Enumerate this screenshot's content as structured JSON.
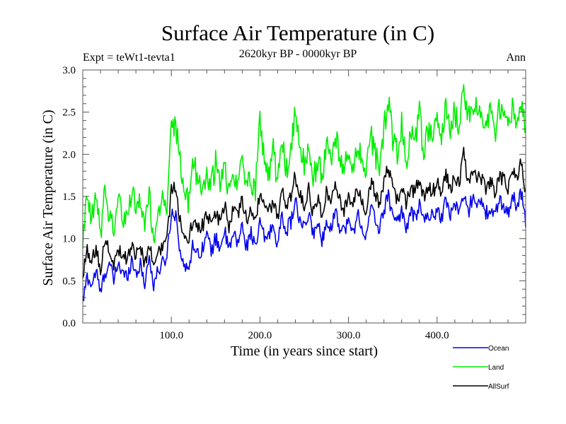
{
  "chart_data": {
    "type": "line",
    "title": "Surface Air Temperature (in C)",
    "subtitle": "2620kyr BP - 0000kyr BP",
    "experiment_label": "Expt = teWt1-tevta1",
    "season_label": "Ann",
    "xlabel": "Time (in years since start)",
    "ylabel": "Surface Air Temperature (in C)",
    "xlim": [
      0,
      500
    ],
    "ylim": [
      0.0,
      3.0
    ],
    "x_ticks": [
      100,
      200,
      300,
      400
    ],
    "x_tick_labels": [
      "100.0",
      "200.0",
      "300.0",
      "400.0"
    ],
    "x_minor_step": 20,
    "y_ticks": [
      0.0,
      0.5,
      1.0,
      1.5,
      2.0,
      2.5,
      3.0
    ],
    "y_tick_labels": [
      "0.0",
      "0.5",
      "1.0",
      "1.5",
      "2.0",
      "2.5",
      "3.0"
    ],
    "y_minor_step": 0.1,
    "grid": false,
    "legend_position": "bottom-right, below plot",
    "x": [
      0,
      5,
      10,
      15,
      20,
      25,
      30,
      35,
      40,
      45,
      50,
      55,
      60,
      65,
      70,
      75,
      80,
      85,
      90,
      95,
      100,
      105,
      110,
      115,
      120,
      125,
      130,
      135,
      140,
      145,
      150,
      155,
      160,
      165,
      170,
      175,
      180,
      185,
      190,
      195,
      200,
      205,
      210,
      215,
      220,
      225,
      230,
      235,
      240,
      245,
      250,
      255,
      260,
      265,
      270,
      275,
      280,
      285,
      290,
      295,
      300,
      305,
      310,
      315,
      320,
      325,
      330,
      335,
      340,
      345,
      350,
      355,
      360,
      365,
      370,
      375,
      380,
      385,
      390,
      395,
      400,
      405,
      410,
      415,
      420,
      425,
      430,
      435,
      440,
      445,
      450,
      455,
      460,
      465,
      470,
      475,
      480,
      485,
      490,
      495,
      500
    ],
    "series": [
      {
        "name": "Ocean",
        "color": "#0000ee",
        "values": [
          0.25,
          0.55,
          0.45,
          0.62,
          0.35,
          0.6,
          0.7,
          0.5,
          0.72,
          0.58,
          0.55,
          0.75,
          0.6,
          0.68,
          0.48,
          0.78,
          0.45,
          0.62,
          0.7,
          0.8,
          1.3,
          1.3,
          0.85,
          0.62,
          0.7,
          0.95,
          0.8,
          0.9,
          1.05,
          0.85,
          1.0,
          0.9,
          1.1,
          0.85,
          1.05,
          0.95,
          1.15,
          0.9,
          1.1,
          0.85,
          1.2,
          1.0,
          1.05,
          1.15,
          0.95,
          1.25,
          1.1,
          1.2,
          1.45,
          1.2,
          1.1,
          1.3,
          1.05,
          1.2,
          0.95,
          1.25,
          1.1,
          1.35,
          1.15,
          1.1,
          1.2,
          1.05,
          1.3,
          1.15,
          1.0,
          1.35,
          1.25,
          1.1,
          1.35,
          1.5,
          1.3,
          1.2,
          1.35,
          1.1,
          1.3,
          1.25,
          1.4,
          1.2,
          1.3,
          1.25,
          1.35,
          1.25,
          1.45,
          1.3,
          1.4,
          1.35,
          1.5,
          1.3,
          1.5,
          1.45,
          1.4,
          1.3,
          1.35,
          1.25,
          1.45,
          1.4,
          1.3,
          1.5,
          1.4,
          1.55,
          1.2
        ]
      },
      {
        "name": "Land",
        "color": "#00ee00",
        "values": [
          1.0,
          1.45,
          1.2,
          1.5,
          1.05,
          1.55,
          1.3,
          1.1,
          1.5,
          1.25,
          1.2,
          1.6,
          1.3,
          1.5,
          1.15,
          1.55,
          0.95,
          1.35,
          1.45,
          1.4,
          2.3,
          2.35,
          1.9,
          1.55,
          1.4,
          1.95,
          1.7,
          1.55,
          1.8,
          1.6,
          1.9,
          1.65,
          1.85,
          1.55,
          1.75,
          1.6,
          2.05,
          1.6,
          1.7,
          1.6,
          2.45,
          1.9,
          1.75,
          2.1,
          1.65,
          2.15,
          1.8,
          2.05,
          2.5,
          2.0,
          1.9,
          2.1,
          1.65,
          1.95,
          1.75,
          2.1,
          1.9,
          2.2,
          2.0,
          1.8,
          2.0,
          1.85,
          2.15,
          1.9,
          1.75,
          2.25,
          2.0,
          1.85,
          2.3,
          2.6,
          2.2,
          2.0,
          2.35,
          1.9,
          2.25,
          2.1,
          2.5,
          2.0,
          2.3,
          2.15,
          2.4,
          2.2,
          2.55,
          2.3,
          2.5,
          2.35,
          2.85,
          2.4,
          2.6,
          2.5,
          2.45,
          2.3,
          2.55,
          2.2,
          2.5,
          2.4,
          2.3,
          2.55,
          2.35,
          2.6,
          2.3
        ]
      },
      {
        "name": "AllSurf",
        "color": "#000000",
        "values": [
          0.55,
          0.85,
          0.7,
          0.9,
          0.65,
          0.95,
          0.85,
          0.7,
          0.9,
          0.8,
          0.75,
          0.95,
          0.8,
          0.9,
          0.7,
          0.95,
          0.65,
          0.85,
          0.9,
          0.95,
          1.6,
          1.65,
          1.2,
          0.95,
          1.0,
          1.25,
          1.1,
          1.15,
          1.3,
          1.15,
          1.3,
          1.2,
          1.4,
          1.15,
          1.35,
          1.25,
          1.45,
          1.2,
          1.35,
          1.2,
          1.55,
          1.35,
          1.3,
          1.45,
          1.25,
          1.55,
          1.4,
          1.5,
          1.75,
          1.5,
          1.4,
          1.6,
          1.3,
          1.5,
          1.3,
          1.55,
          1.4,
          1.65,
          1.45,
          1.35,
          1.5,
          1.35,
          1.6,
          1.45,
          1.3,
          1.65,
          1.55,
          1.4,
          1.65,
          1.85,
          1.6,
          1.45,
          1.65,
          1.4,
          1.6,
          1.55,
          1.7,
          1.5,
          1.6,
          1.55,
          1.65,
          1.55,
          1.75,
          1.6,
          1.7,
          1.65,
          2.0,
          1.65,
          1.8,
          1.75,
          1.7,
          1.6,
          1.7,
          1.55,
          1.75,
          1.7,
          1.6,
          1.8,
          1.7,
          1.9,
          1.55
        ]
      }
    ]
  }
}
